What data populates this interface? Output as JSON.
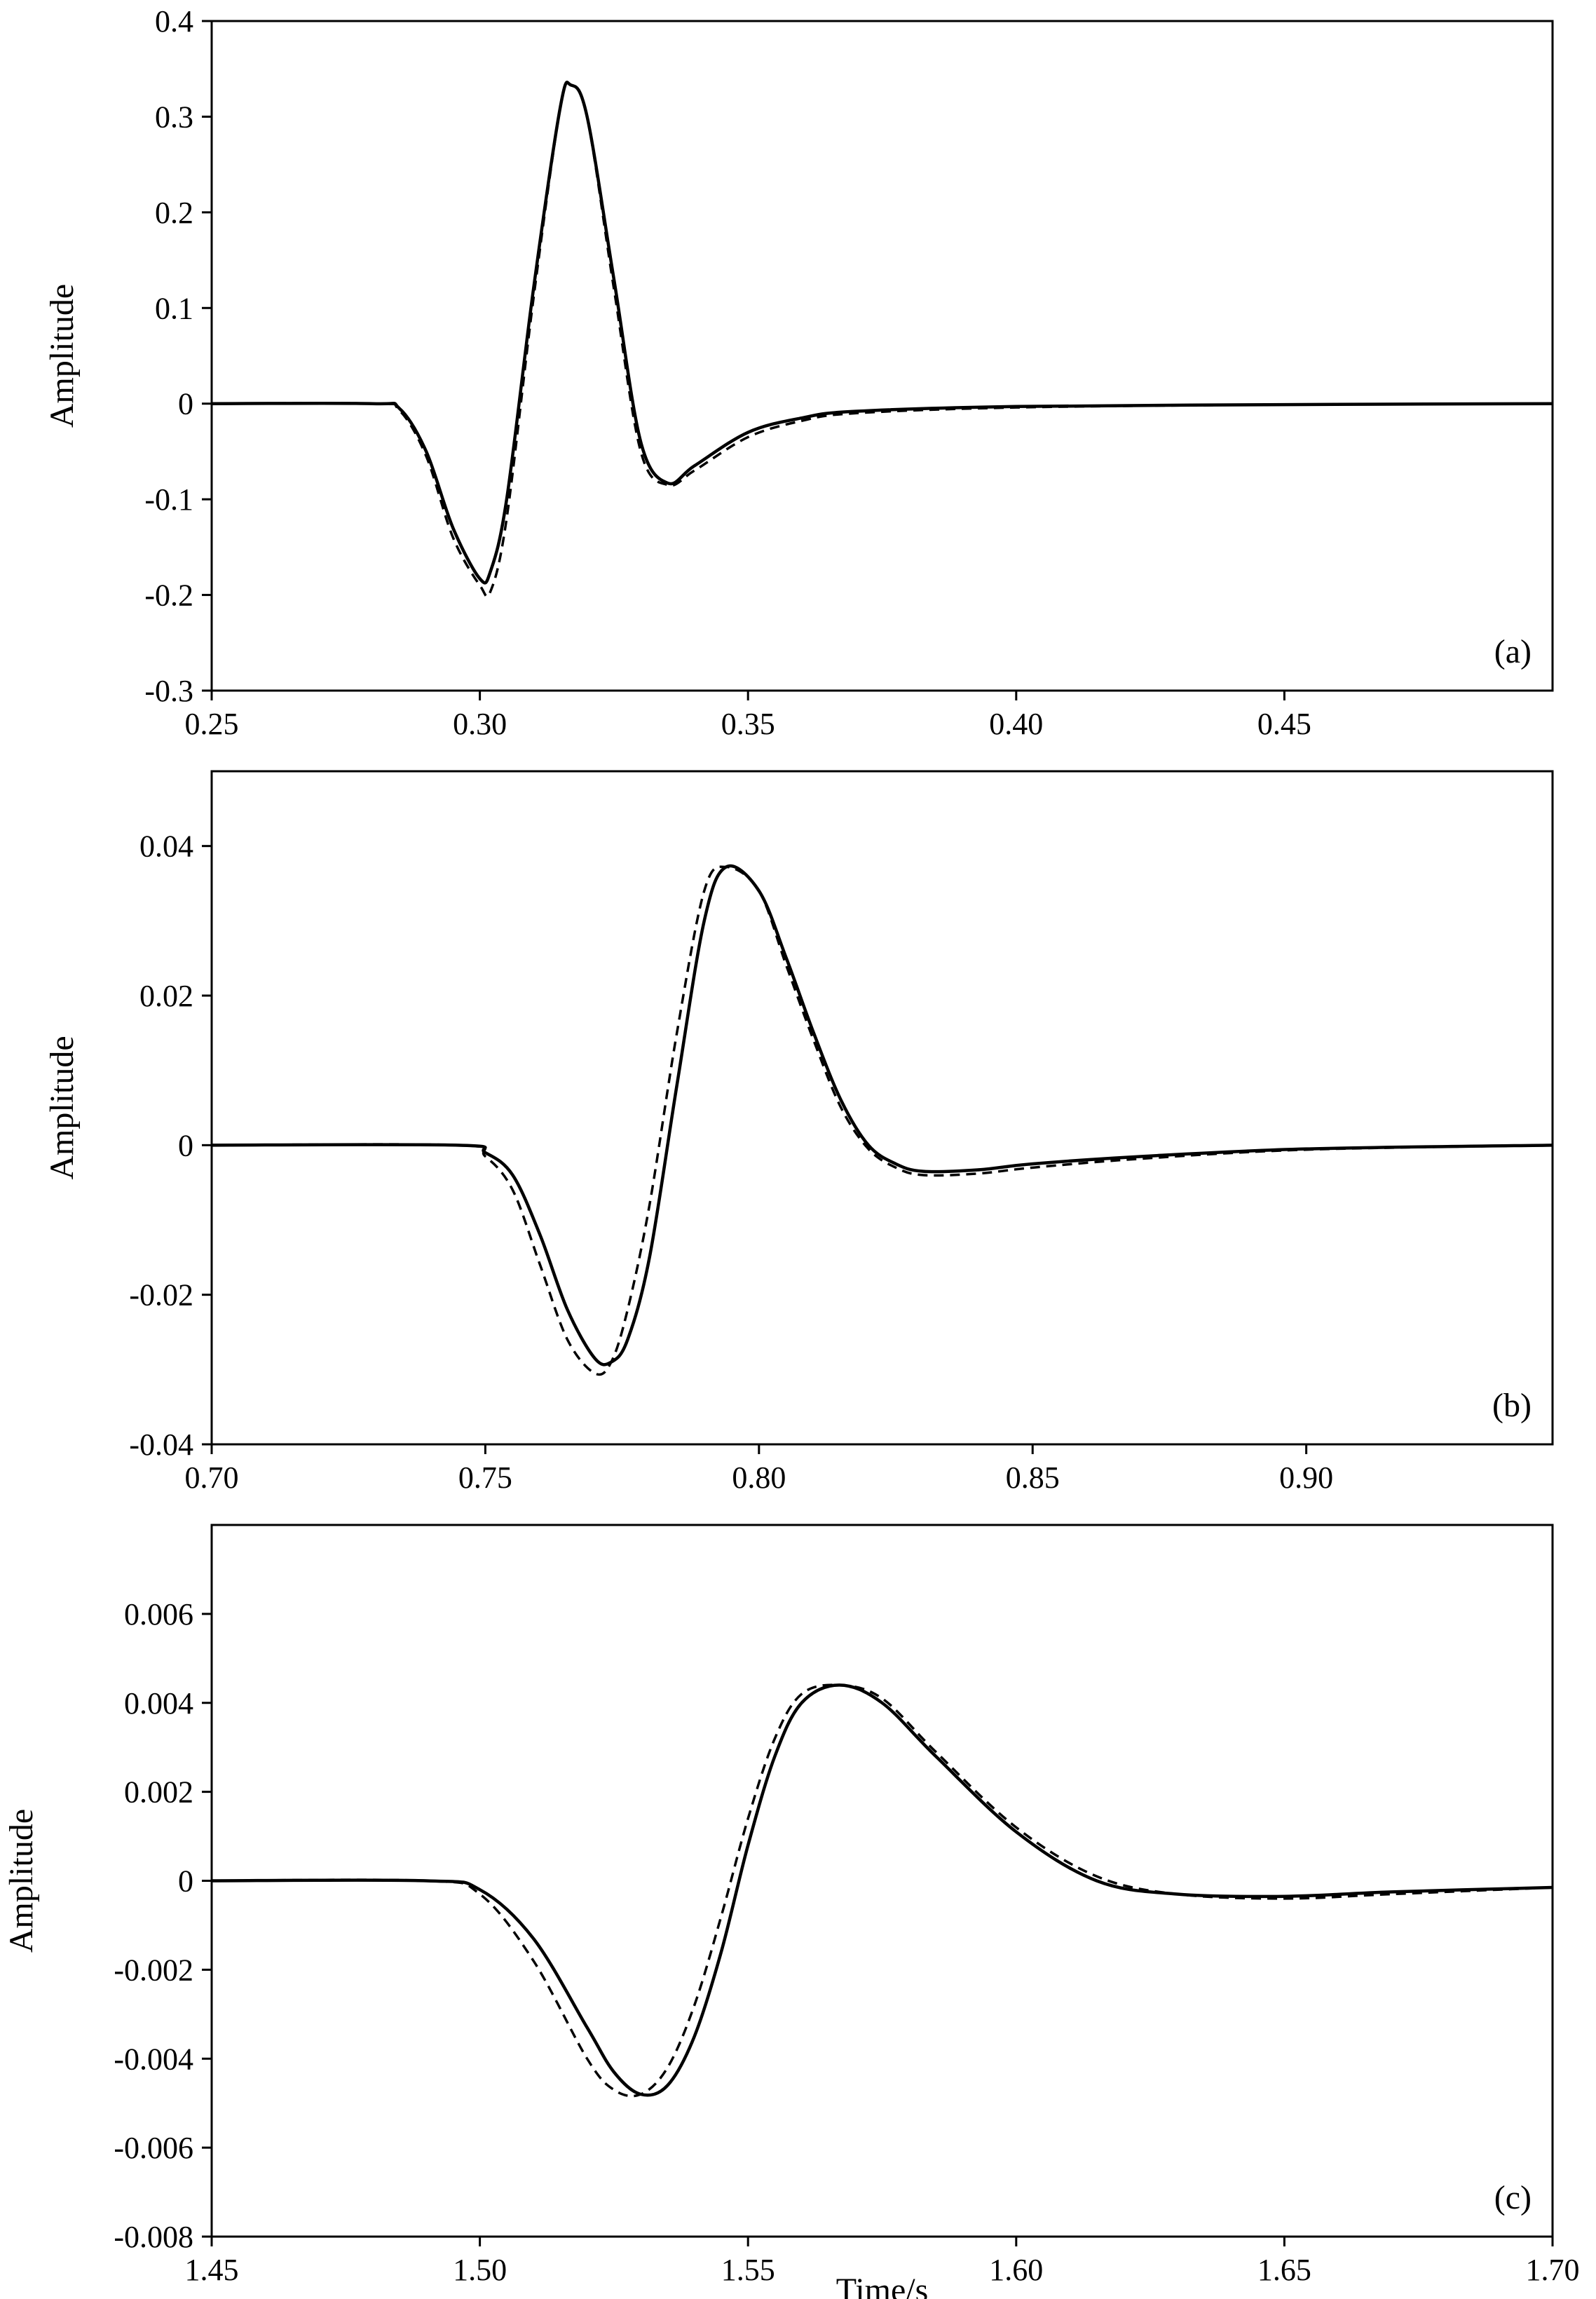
{
  "chart_data": [
    {
      "type": "line",
      "panel_label": "(a)",
      "xlabel": "",
      "ylabel": "Amplitude",
      "xlim": [
        0.25,
        0.5
      ],
      "ylim": [
        -0.3,
        0.4
      ],
      "xticks": [
        0.25,
        0.3,
        0.35,
        0.4,
        0.45
      ],
      "xtick_labels": [
        "0.25",
        "0.30",
        "0.35",
        "0.40",
        "0.45"
      ],
      "yticks": [
        -0.3,
        -0.2,
        -0.1,
        0,
        0.1,
        0.2,
        0.3,
        0.4
      ],
      "ytick_labels": [
        "-0.3",
        "-0.2",
        "-0.1",
        "0",
        "0.1",
        "0.2",
        "0.3",
        "0.4"
      ],
      "grid": false,
      "series": [
        {
          "style": "solid",
          "x": [
            0.25,
            0.28,
            0.285,
            0.29,
            0.295,
            0.3,
            0.302,
            0.305,
            0.31,
            0.315,
            0.317,
            0.32,
            0.325,
            0.33,
            0.335,
            0.34,
            0.35,
            0.36,
            0.37,
            0.4,
            0.45,
            0.5
          ],
          "y": [
            0,
            0,
            -0.005,
            -0.05,
            -0.13,
            -0.183,
            -0.175,
            -0.1,
            0.12,
            0.31,
            0.333,
            0.3,
            0.13,
            -0.04,
            -0.083,
            -0.065,
            -0.03,
            -0.015,
            -0.008,
            -0.003,
            -0.001,
            0
          ]
        },
        {
          "style": "dashed",
          "x": [
            0.25,
            0.28,
            0.285,
            0.29,
            0.295,
            0.3,
            0.302,
            0.305,
            0.31,
            0.315,
            0.317,
            0.32,
            0.325,
            0.33,
            0.335,
            0.34,
            0.35,
            0.36,
            0.37,
            0.4,
            0.45,
            0.5
          ],
          "y": [
            0,
            0,
            -0.007,
            -0.055,
            -0.14,
            -0.19,
            -0.196,
            -0.12,
            0.11,
            0.31,
            0.333,
            0.3,
            0.12,
            -0.05,
            -0.085,
            -0.07,
            -0.035,
            -0.018,
            -0.01,
            -0.004,
            -0.001,
            0
          ]
        }
      ]
    },
    {
      "type": "line",
      "panel_label": "(b)",
      "xlabel": "",
      "ylabel": "Amplitude",
      "xlim": [
        0.7,
        0.945
      ],
      "ylim": [
        -0.04,
        0.05
      ],
      "xticks": [
        0.7,
        0.75,
        0.8,
        0.85,
        0.9
      ],
      "xtick_labels": [
        "0.70",
        "0.75",
        "0.80",
        "0.85",
        "0.90"
      ],
      "yticks": [
        -0.04,
        -0.02,
        0,
        0.02,
        0.04
      ],
      "ytick_labels": [
        "-0.04",
        "-0.02",
        "0",
        "0.02",
        "0.04"
      ],
      "grid": false,
      "series": [
        {
          "style": "solid",
          "x": [
            0.7,
            0.745,
            0.75,
            0.755,
            0.76,
            0.765,
            0.77,
            0.773,
            0.776,
            0.78,
            0.785,
            0.79,
            0.794,
            0.8,
            0.805,
            0.81,
            0.815,
            0.82,
            0.825,
            0.83,
            0.84,
            0.85,
            0.87,
            0.9,
            0.945
          ],
          "y": [
            0,
            0,
            -0.001,
            -0.004,
            -0.012,
            -0.022,
            -0.0285,
            -0.029,
            -0.026,
            -0.015,
            0.008,
            0.03,
            0.0372,
            0.034,
            0.025,
            0.015,
            0.006,
            0.0,
            -0.0025,
            -0.0035,
            -0.0033,
            -0.0025,
            -0.0015,
            -0.0005,
            0
          ]
        },
        {
          "style": "dashed",
          "x": [
            0.7,
            0.745,
            0.75,
            0.755,
            0.76,
            0.765,
            0.77,
            0.773,
            0.776,
            0.78,
            0.785,
            0.79,
            0.794,
            0.8,
            0.805,
            0.81,
            0.815,
            0.82,
            0.825,
            0.83,
            0.84,
            0.85,
            0.87,
            0.9,
            0.945
          ],
          "y": [
            0,
            0,
            -0.0015,
            -0.006,
            -0.016,
            -0.026,
            -0.0305,
            -0.029,
            -0.022,
            -0.008,
            0.015,
            0.034,
            0.0372,
            0.034,
            0.024,
            0.014,
            0.005,
            -0.0005,
            -0.003,
            -0.004,
            -0.0038,
            -0.003,
            -0.0018,
            -0.0006,
            0
          ]
        }
      ]
    },
    {
      "type": "line",
      "panel_label": "(c)",
      "xlabel": "Time/s",
      "ylabel": "Amplitude",
      "xlim": [
        1.45,
        1.7
      ],
      "ylim": [
        -0.008,
        0.008
      ],
      "xticks": [
        1.45,
        1.5,
        1.55,
        1.6,
        1.65,
        1.7
      ],
      "xtick_labels": [
        "1.45",
        "1.50",
        "1.55",
        "1.60",
        "1.65",
        "1.70"
      ],
      "yticks": [
        -0.008,
        -0.006,
        -0.004,
        -0.002,
        0,
        0.002,
        0.004,
        0.006
      ],
      "ytick_labels": [
        "-0.008",
        "-0.006",
        "-0.004",
        "-0.002",
        "0",
        "0.002",
        "0.004",
        "0.006"
      ],
      "grid": false,
      "series": [
        {
          "style": "solid",
          "x": [
            1.45,
            1.49,
            1.5,
            1.51,
            1.52,
            1.525,
            1.53,
            1.535,
            1.54,
            1.545,
            1.55,
            1.555,
            1.56,
            1.567,
            1.575,
            1.585,
            1.6,
            1.615,
            1.63,
            1.65,
            1.67,
            1.7
          ],
          "y": [
            0,
            0,
            -0.0002,
            -0.0013,
            -0.0033,
            -0.0043,
            -0.0048,
            -0.0046,
            -0.0035,
            -0.0016,
            0.0008,
            0.0028,
            0.004,
            0.0044,
            0.004,
            0.0028,
            0.0011,
            0.0,
            -0.0003,
            -0.00035,
            -0.00025,
            -0.00015
          ]
        },
        {
          "style": "dashed",
          "x": [
            1.45,
            1.49,
            1.5,
            1.51,
            1.52,
            1.525,
            1.53,
            1.535,
            1.54,
            1.545,
            1.55,
            1.555,
            1.56,
            1.567,
            1.575,
            1.585,
            1.6,
            1.615,
            1.63,
            1.65,
            1.67,
            1.7
          ],
          "y": [
            0,
            0,
            -0.0003,
            -0.0018,
            -0.004,
            -0.0047,
            -0.0048,
            -0.0042,
            -0.0028,
            -0.0008,
            0.0014,
            0.0032,
            0.0042,
            0.0044,
            0.0041,
            0.0029,
            0.0012,
            0.0001,
            -0.0003,
            -0.0004,
            -0.0003,
            -0.00015
          ]
        }
      ]
    }
  ]
}
